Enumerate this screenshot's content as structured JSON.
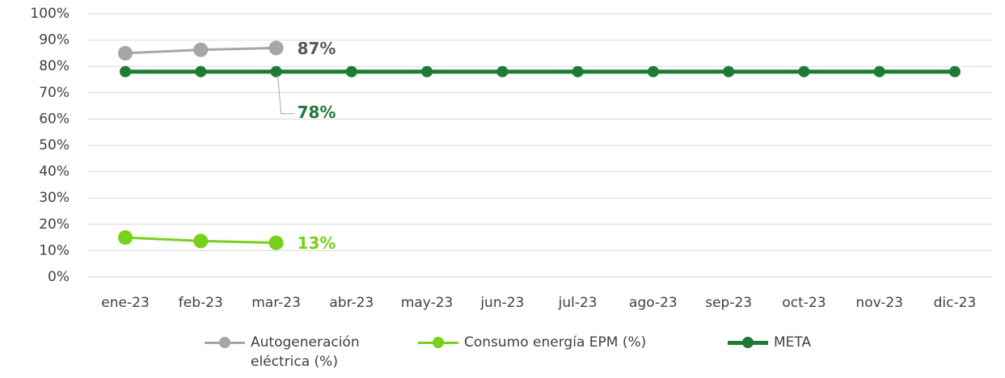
{
  "chart_data": {
    "type": "line",
    "categories": [
      "ene-23",
      "feb-23",
      "mar-23",
      "abr-23",
      "may-23",
      "jun-23",
      "jul-23",
      "ago-23",
      "sep-23",
      "oct-23",
      "nov-23",
      "dic-23"
    ],
    "series": [
      {
        "name": "Autogeneración eléctrica (%)",
        "color": "#a6a6a6",
        "label_color": "#595959",
        "values": [
          85,
          86.3,
          87,
          null,
          null,
          null,
          null,
          null,
          null,
          null,
          null,
          null
        ],
        "value_labels": [
          null,
          null,
          "87%",
          null,
          null,
          null,
          null,
          null,
          null,
          null,
          null,
          null
        ]
      },
      {
        "name": "Consumo energía EPM (%)",
        "color": "#77d11a",
        "label_color": "#77d11a",
        "values": [
          15,
          13.7,
          13,
          null,
          null,
          null,
          null,
          null,
          null,
          null,
          null,
          null
        ],
        "value_labels": [
          null,
          null,
          "13%",
          null,
          null,
          null,
          null,
          null,
          null,
          null,
          null,
          null
        ]
      },
      {
        "name": "META",
        "color": "#1e7b34",
        "label_color": "#1e7b34",
        "values": [
          78,
          78,
          78,
          78,
          78,
          78,
          78,
          78,
          78,
          78,
          78,
          78
        ],
        "value_labels": [
          null,
          null,
          "78%",
          null,
          null,
          null,
          null,
          null,
          null,
          null,
          null,
          null
        ]
      }
    ],
    "ylim": [
      0,
      100
    ],
    "yticks": [
      {
        "value": 0,
        "label": "0%"
      },
      {
        "value": 10,
        "label": "10%"
      },
      {
        "value": 20,
        "label": "20%"
      },
      {
        "value": 30,
        "label": "30%"
      },
      {
        "value": 40,
        "label": "40%"
      },
      {
        "value": 50,
        "label": "50%"
      },
      {
        "value": 60,
        "label": "60%"
      },
      {
        "value": 70,
        "label": "70%"
      },
      {
        "value": 80,
        "label": "80%"
      },
      {
        "value": 90,
        "label": "90%"
      },
      {
        "value": 100,
        "label": "100%"
      }
    ],
    "grid": true,
    "legend": "bottom"
  }
}
